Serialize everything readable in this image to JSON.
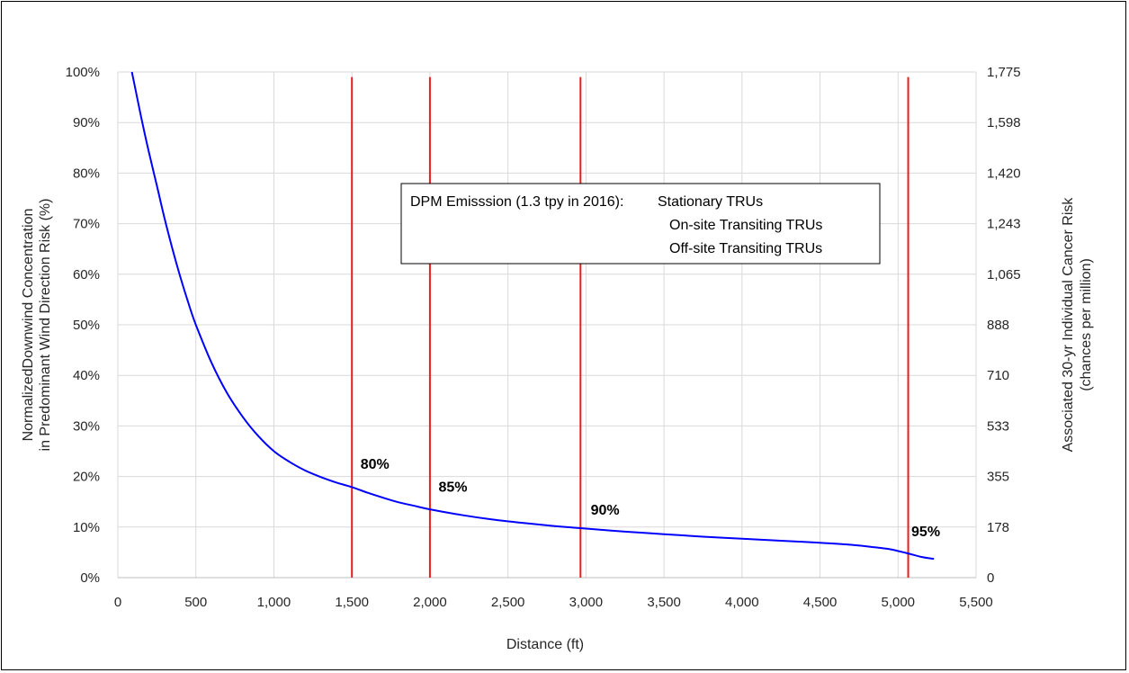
{
  "chart_data": {
    "type": "line",
    "title": "",
    "xlabel": "Distance (ft)",
    "ylabel_lines": [
      "NormalizedDownwind Concentration",
      "in Predominant Wind Direction Risk (%)"
    ],
    "y2label_lines": [
      "Associated 30-yr Individual Cancer Risk",
      "(chances per million)"
    ],
    "xlim": [
      0,
      5500
    ],
    "ylim": [
      0,
      100
    ],
    "y2lim": [
      0,
      1775
    ],
    "grid": true,
    "x_ticks": [
      "0",
      "500",
      "1,000",
      "1,500",
      "2,000",
      "2,500",
      "3,000",
      "3,500",
      "4,000",
      "4,500",
      "5,000",
      "5,500"
    ],
    "x_tick_values": [
      0,
      500,
      1000,
      1500,
      2000,
      2500,
      3000,
      3500,
      4000,
      4500,
      5000,
      5500
    ],
    "y_ticks": [
      "0%",
      "10%",
      "20%",
      "30%",
      "40%",
      "50%",
      "60%",
      "70%",
      "80%",
      "90%",
      "100%"
    ],
    "y_tick_values": [
      0,
      10,
      20,
      30,
      40,
      50,
      60,
      70,
      80,
      90,
      100
    ],
    "y2_ticks": [
      "0",
      "178",
      "355",
      "533",
      "710",
      "888",
      "1,065",
      "1,243",
      "1,420",
      "1,598",
      "1,775"
    ],
    "series": [
      {
        "color": "#0000ff",
        "x": [
          90,
          120,
          160,
          200,
          250,
          300,
          350,
          400,
          450,
          500,
          600,
          700,
          800,
          900,
          1000,
          1100,
          1200,
          1300,
          1400,
          1500,
          1600,
          1700,
          1800,
          1900,
          2000,
          2200,
          2400,
          2600,
          2800,
          3000,
          3250,
          3500,
          3750,
          4000,
          4250,
          4500,
          4700,
          4850,
          4950,
          5050,
          5150,
          5230
        ],
        "y": [
          100,
          95.5,
          89.5,
          84,
          77.5,
          71,
          65,
          59.5,
          54.5,
          50,
          42.5,
          36.5,
          31.8,
          28,
          25,
          22.9,
          21.2,
          19.9,
          18.8,
          17.9,
          16.8,
          15.8,
          14.9,
          14.2,
          13.5,
          12.4,
          11.5,
          10.8,
          10.2,
          9.7,
          9.1,
          8.6,
          8.1,
          7.7,
          7.3,
          6.9,
          6.5,
          6.0,
          5.6,
          4.9,
          4.1,
          3.7
        ]
      }
    ],
    "vertical_lines": [
      {
        "x": 1500,
        "label": "80%",
        "label_x": 1555,
        "label_y": 21.5
      },
      {
        "x": 2000,
        "label": "85%",
        "label_x": 2055,
        "label_y": 17
      },
      {
        "x": 2965,
        "label": "90%",
        "label_x": 3030,
        "label_y": 12.5
      },
      {
        "x": 5065,
        "label": "95%",
        "label_x": 5085,
        "label_y": 8.2
      }
    ],
    "vertical_line_color": "#ee1c1c",
    "legend": {
      "label": "DPM Emisssion (1.3 tpy in 2016):",
      "items": [
        "Stationary TRUs",
        "On-site Transiting TRUs",
        "Off-site Transiting TRUs"
      ]
    }
  }
}
